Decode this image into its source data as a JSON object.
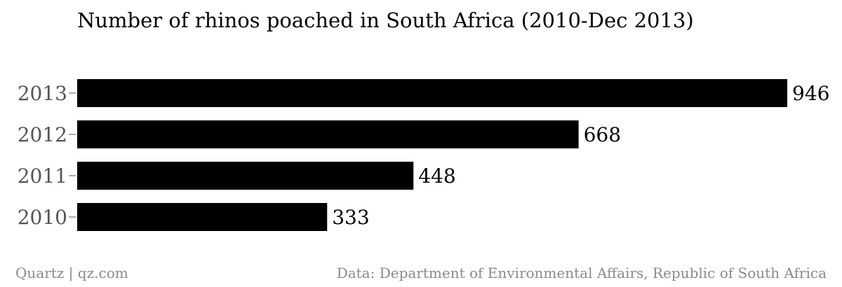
{
  "chart_data": {
    "type": "bar",
    "orientation": "horizontal",
    "title": "Number of rhinos poached in South Africa (2010-Dec 2013)",
    "categories": [
      "2013",
      "2012",
      "2011",
      "2010"
    ],
    "values": [
      946,
      668,
      448,
      333
    ],
    "data_labels": [
      "946",
      "668",
      "448",
      "333"
    ],
    "xlabel": "",
    "ylabel": "",
    "xlim": [
      0,
      946
    ],
    "grid": false,
    "legend": "none",
    "bar_color": "#000000"
  },
  "footer": {
    "source_left": "Quartz | qz.com",
    "source_right": "Data: Department of Environmental Affairs, Republic of South Africa"
  },
  "colors": {
    "bar": "#000000",
    "category_label": "#555555",
    "value_label": "#000000",
    "footer_text": "#8a8a8a",
    "axis_tick": "#555555"
  }
}
